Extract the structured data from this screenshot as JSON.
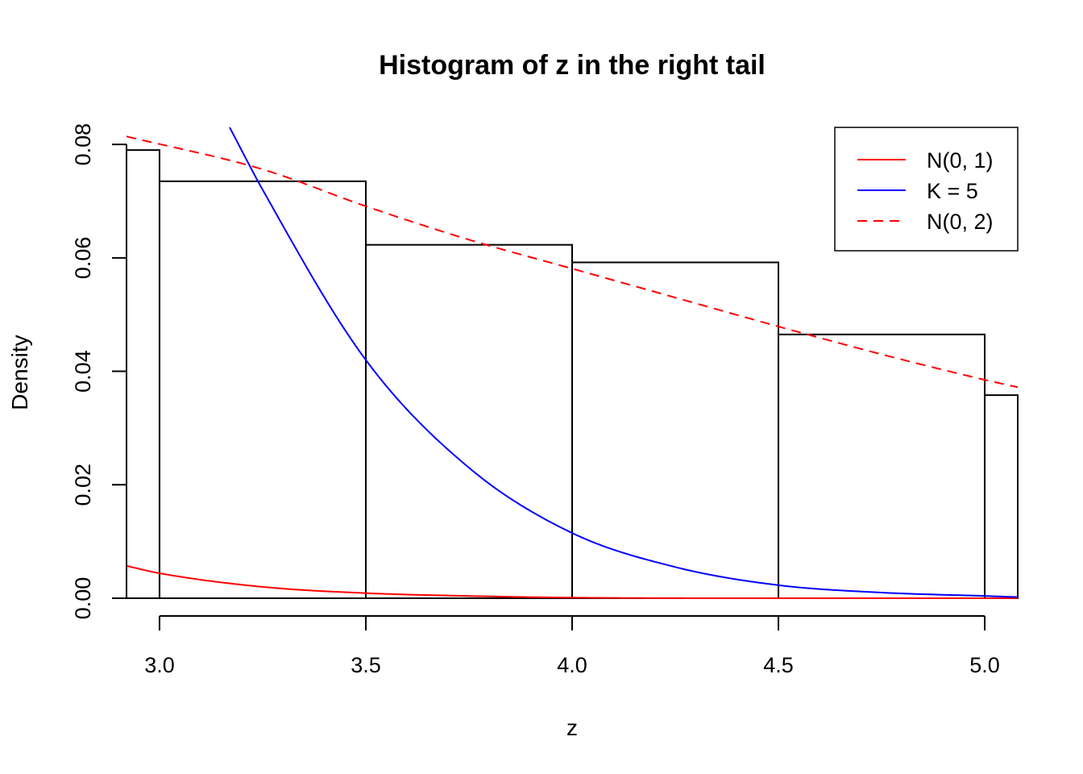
{
  "chart_data": {
    "type": "histogram",
    "title": "Histogram of z in the right tail",
    "xlabel": "z",
    "ylabel": "Density",
    "xlim": [
      2.92,
      5.08
    ],
    "ylim": [
      0,
      0.083
    ],
    "x_ticks": [
      3.0,
      3.5,
      4.0,
      4.5,
      5.0
    ],
    "x_tick_labels": [
      "3.0",
      "3.5",
      "4.0",
      "4.5",
      "5.0"
    ],
    "y_ticks": [
      0.0,
      0.02,
      0.04,
      0.06,
      0.08
    ],
    "y_tick_labels": [
      "0.00",
      "0.02",
      "0.04",
      "0.06",
      "0.08"
    ],
    "grid": false,
    "bins": [
      {
        "x0": 2.92,
        "x1": 3.0,
        "density": 0.079
      },
      {
        "x0": 3.0,
        "x1": 3.5,
        "density": 0.0735
      },
      {
        "x0": 3.5,
        "x1": 4.0,
        "density": 0.0623
      },
      {
        "x0": 4.0,
        "x1": 4.5,
        "density": 0.0592
      },
      {
        "x0": 4.5,
        "x1": 5.0,
        "density": 0.0465
      },
      {
        "x0": 5.0,
        "x1": 5.08,
        "density": 0.0358
      }
    ],
    "curves": [
      {
        "name": "N(0, 1)",
        "color": "#ff0000",
        "dash": "solid",
        "points": [
          [
            2.92,
            0.0057
          ],
          [
            3.0,
            0.0044
          ],
          [
            3.25,
            0.002
          ],
          [
            3.5,
            0.0009
          ],
          [
            3.75,
            0.0004
          ],
          [
            4.0,
            0.0001
          ],
          [
            4.5,
            0.0
          ],
          [
            5.08,
            0.0
          ]
        ]
      },
      {
        "name": "K = 5",
        "color": "#0000ff",
        "dash": "solid",
        "points": [
          [
            3.17,
            0.083
          ],
          [
            3.25,
            0.072
          ],
          [
            3.5,
            0.042
          ],
          [
            3.75,
            0.023
          ],
          [
            4.0,
            0.0115
          ],
          [
            4.25,
            0.0055
          ],
          [
            4.5,
            0.0023
          ],
          [
            4.75,
            0.001
          ],
          [
            5.0,
            0.0004
          ],
          [
            5.08,
            0.0002
          ]
        ]
      },
      {
        "name": "N(0, 2)",
        "color": "#ff0000",
        "dash": "dashed",
        "points": [
          [
            2.92,
            0.0814
          ],
          [
            3.25,
            0.0756
          ],
          [
            3.5,
            0.0691
          ],
          [
            3.75,
            0.0632
          ],
          [
            4.0,
            0.0581
          ],
          [
            4.25,
            0.053
          ],
          [
            4.5,
            0.0479
          ],
          [
            4.75,
            0.043
          ],
          [
            5.0,
            0.0385
          ],
          [
            5.08,
            0.0372
          ]
        ]
      }
    ],
    "legend": {
      "position": "top-right",
      "entries": [
        {
          "label": "N(0, 1)",
          "color": "#ff0000",
          "dash": "solid"
        },
        {
          "label": "K = 5",
          "color": "#0000ff",
          "dash": "solid"
        },
        {
          "label": "N(0, 2)",
          "color": "#ff0000",
          "dash": "dashed"
        }
      ]
    }
  }
}
